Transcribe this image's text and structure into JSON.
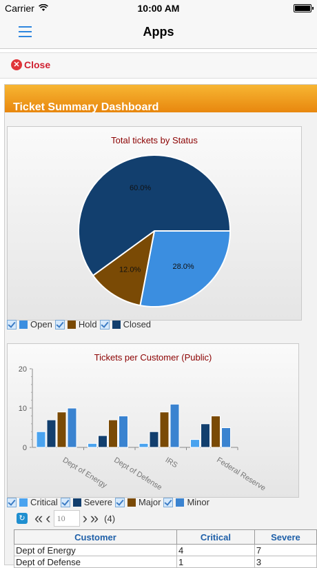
{
  "status_bar": {
    "carrier": "Carrier",
    "time": "10:00 AM"
  },
  "navbar": {
    "title": "Apps"
  },
  "close_bar": {
    "label": "Close"
  },
  "dashboard": {
    "title": "Ticket Summary Dashboard"
  },
  "colors": {
    "open": "#3b8ee0",
    "hold": "#7a4a05",
    "closed": "#123f6e",
    "critical": "#4aa3ef",
    "severe": "#123f6e",
    "major": "#7a4a05",
    "minor": "#3a83d0",
    "title_red": "#8b0000",
    "header_orange": "#e8870e"
  },
  "chart_data": [
    {
      "type": "pie",
      "title": "Total tickets by Status",
      "categories": [
        "Open",
        "Hold",
        "Closed"
      ],
      "values": [
        28.0,
        12.0,
        60.0
      ],
      "labels": [
        "28.0%",
        "12.0%",
        "60.0%"
      ],
      "legend": [
        "Open",
        "Hold",
        "Closed"
      ],
      "legend_position": "bottom-left"
    },
    {
      "type": "bar",
      "title": "Tickets per Customer (Public)",
      "categories": [
        "Dept of Energy",
        "Dept of Defense",
        "IRS",
        "Federal Reserve"
      ],
      "series": [
        {
          "name": "Critical",
          "values": [
            4,
            1,
            1,
            2
          ]
        },
        {
          "name": "Severe",
          "values": [
            7,
            3,
            4,
            6
          ]
        },
        {
          "name": "Major",
          "values": [
            9,
            7,
            9,
            8
          ]
        },
        {
          "name": "Minor",
          "values": [
            10,
            8,
            11,
            5
          ]
        }
      ],
      "yticks": [
        "20",
        "10",
        "0"
      ],
      "ylim": [
        0,
        20
      ],
      "grid": false,
      "legend_position": "bottom-left"
    }
  ],
  "pager": {
    "page_size": "10",
    "count": "(4)"
  },
  "table": {
    "headers": [
      "Customer",
      "Critical",
      "Severe"
    ],
    "rows": [
      [
        "Dept of Energy",
        "4",
        "7"
      ],
      [
        "Dept of Defense",
        "1",
        "3"
      ]
    ]
  }
}
